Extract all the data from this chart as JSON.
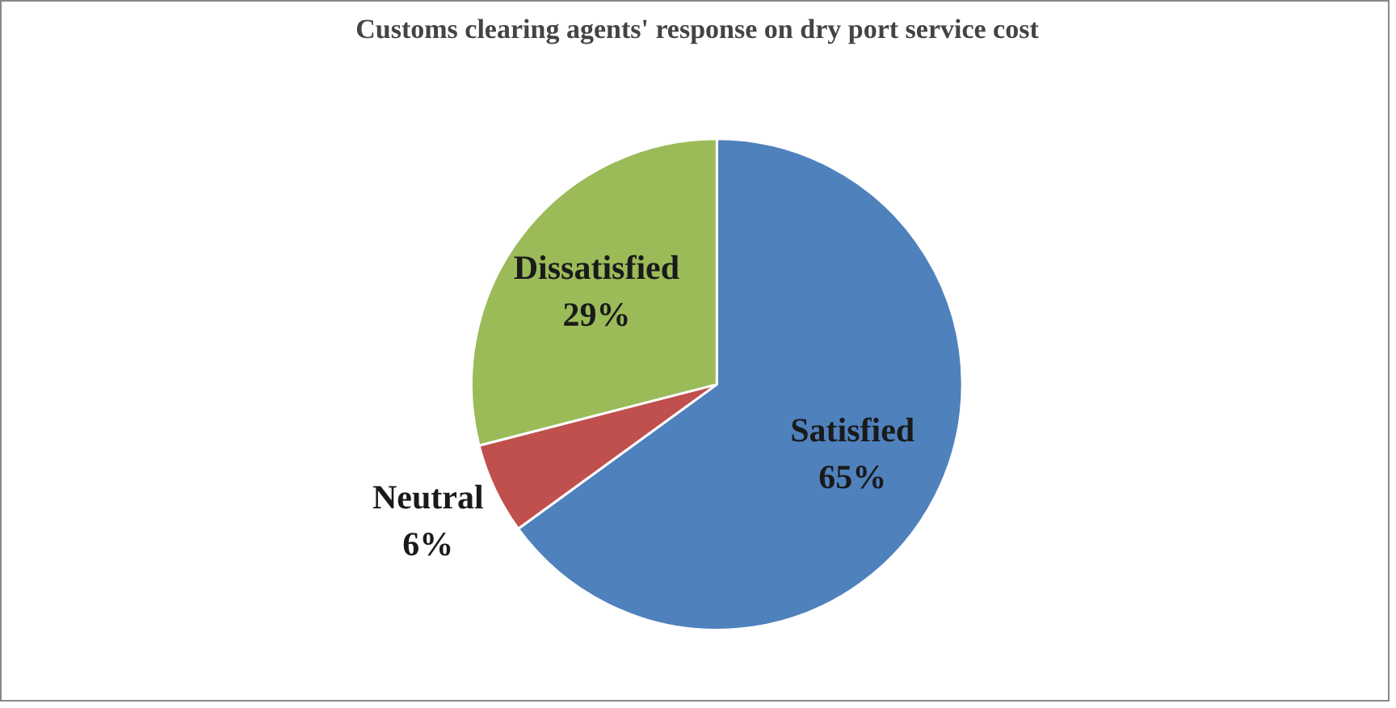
{
  "chart_data": {
    "type": "pie",
    "title": "Customs clearing agents' response on dry port service cost",
    "categories": [
      "Satisfied",
      "Neutral",
      "Dissatisfied"
    ],
    "values": [
      65,
      6,
      29
    ],
    "value_labels": [
      "65%",
      "6%",
      "29%"
    ],
    "colors": [
      "#4f81bd",
      "#c0504d",
      "#9bbb59"
    ]
  }
}
